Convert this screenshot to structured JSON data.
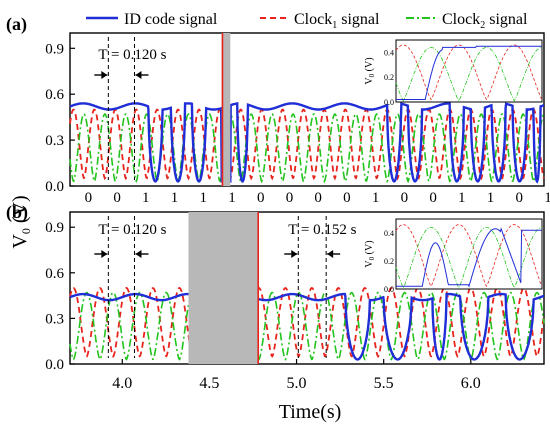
{
  "figure": {
    "ylabel_main": "V",
    "ylabel_sub": "0",
    "ylabel_unit": " (V)",
    "xlabel": "Time(s)",
    "inset_ylabel_main": "V",
    "inset_ylabel_sub": "0",
    "inset_ylabel_unit": " (V)"
  },
  "legend": {
    "items": [
      {
        "label": "ID code signal",
        "color": "#1f2ed6",
        "dash": "solid"
      },
      {
        "label_main": "Clock",
        "label_sub": "1",
        "label_rest": " signal",
        "color": "#e8231c",
        "dash": "dashed"
      },
      {
        "label_main": "Clock",
        "label_sub": "2",
        "label_rest": " signal",
        "color": "#22c31c",
        "dash": "dashdot"
      }
    ]
  },
  "chart_data": [
    {
      "type": "line",
      "panel_label": "(a)",
      "xlim": [
        3.7,
        6.42
      ],
      "ylim": [
        0.0,
        1.0
      ],
      "yticks": [
        "0.0",
        "0.3",
        "0.6",
        "0.9"
      ],
      "bit_labels": [
        "0",
        "0",
        "1",
        "1",
        "1",
        "1",
        "0",
        "0",
        "0",
        "0",
        "1",
        "0",
        "0",
        "1",
        "1",
        "0",
        "1"
      ],
      "period_annotation": "T = 0.120 s",
      "gray_band_x": [
        4.57,
        4.62
      ],
      "red_line_x": 4.575,
      "series": [
        {
          "name": "ID code signal",
          "color": "#1f2ed6",
          "low": 0.03,
          "high": 0.4,
          "baseline": 0.52
        },
        {
          "name": "Clock1 signal",
          "color": "#e8231c",
          "low": 0.05,
          "high": 0.5,
          "period": 0.12
        },
        {
          "name": "Clock2 signal",
          "color": "#22c31c",
          "low": 0.03,
          "high": 0.47,
          "period": 0.12
        }
      ],
      "inset": {
        "yticks": [
          "0.0",
          "0.2",
          "0.4"
        ],
        "ylim": [
          0.0,
          0.5
        ]
      }
    },
    {
      "type": "line",
      "panel_label": "(b)",
      "xlim": [
        3.7,
        6.42
      ],
      "ylim": [
        0.0,
        1.0
      ],
      "yticks": [
        "0.0",
        "0.3",
        "0.6",
        "0.9"
      ],
      "xticks": [
        "4.0",
        "4.5",
        "5.0",
        "5.5",
        "6.0"
      ],
      "xtick_values": [
        4.0,
        4.5,
        5.0,
        5.5,
        6.0
      ],
      "period_annotations": [
        "T = 0.120 s",
        "T = 0.152 s"
      ],
      "gray_band_x": [
        4.38,
        4.78
      ],
      "red_line_x": 4.78,
      "series": [
        {
          "name": "ID code signal",
          "color": "#1f2ed6",
          "low": 0.03,
          "high": 0.45,
          "baseline": 0.44
        },
        {
          "name": "Clock1 signal",
          "color": "#e8231c",
          "low": 0.05,
          "high": 0.5,
          "period": 0.152
        },
        {
          "name": "Clock2 signal",
          "color": "#22c31c",
          "low": 0.03,
          "high": 0.47,
          "period": 0.152
        }
      ],
      "inset": {
        "yticks": [
          "0.0",
          "0.2",
          "0.4"
        ],
        "ylim": [
          0.0,
          0.5
        ]
      }
    }
  ]
}
